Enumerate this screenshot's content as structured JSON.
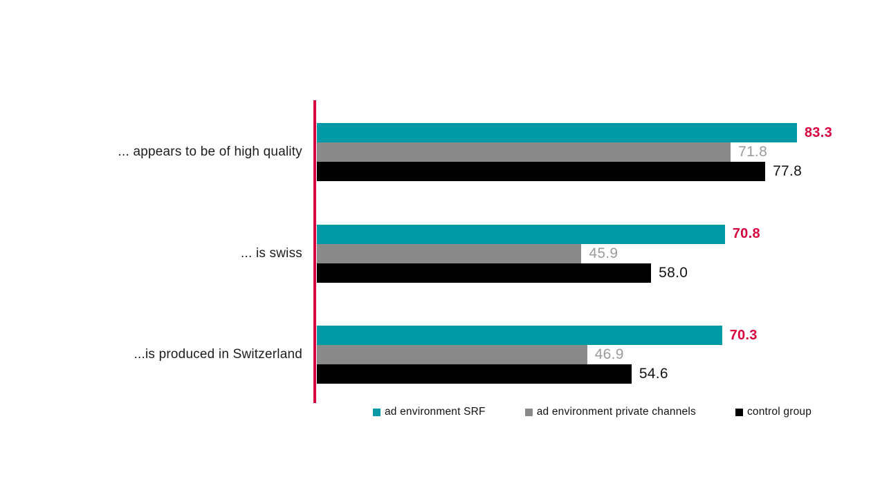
{
  "chart_data": {
    "type": "bar",
    "orientation": "horizontal",
    "title": "",
    "categories": [
      "... appears to be of high quality",
      "... is swiss",
      "...is produced in Switzerland"
    ],
    "series": [
      {
        "name": "ad environment SRF",
        "color": "#0099a6",
        "value_label_color": "#d8013e",
        "value_label_bold": true,
        "values": [
          83.3,
          70.8,
          70.3
        ],
        "value_labels": [
          "83.3",
          "70.8",
          "70.3"
        ]
      },
      {
        "name": "ad environment private channels",
        "color": "#8a8a8a",
        "value_label_color": "#9b9b9b",
        "value_label_bold": false,
        "values": [
          71.8,
          45.9,
          46.9
        ],
        "value_labels": [
          "71.8",
          "45.9",
          "46.9"
        ]
      },
      {
        "name": "control group",
        "color": "#000000",
        "value_label_color": "#141414",
        "value_label_bold": false,
        "values": [
          77.8,
          58.0,
          54.6
        ],
        "value_labels": [
          "77.8",
          "58.0",
          "54.6"
        ]
      }
    ],
    "xlim": [
      0,
      100
    ],
    "axis_line_color": "#d8013e",
    "legend_position": "bottom",
    "grid": false
  }
}
